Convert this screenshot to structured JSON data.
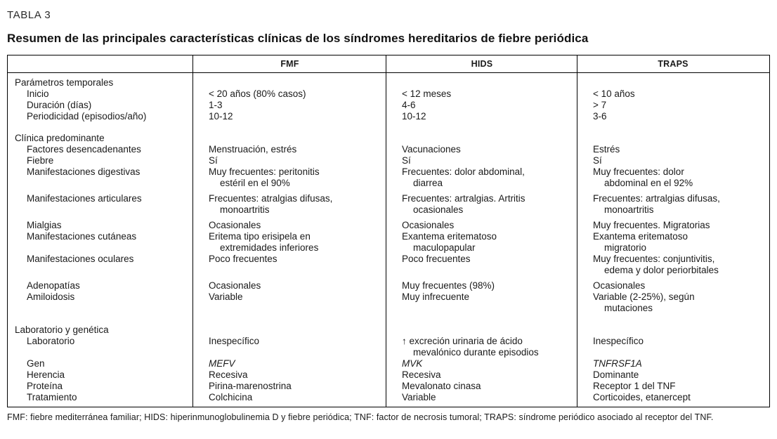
{
  "page": {
    "tag": "TABLA 3",
    "title": "Resumen de las principales características clínicas de los síndromes hereditarios de fiebre periódica",
    "footnote": "FMF: fiebre mediterránea familiar; HIDS: hiperinmunoglobulinemia D y fiebre periódica; TNF: factor de necrosis tumoral; TRAPS: síndrome periódico asociado al receptor del TNF."
  },
  "table": {
    "columns": [
      "",
      "FMF",
      "HIDS",
      "TRAPS"
    ],
    "sections": [
      {
        "heading": "Parámetros temporales",
        "rows": [
          {
            "label": "Inicio",
            "values": [
              [
                "< 20 años (80% casos)"
              ],
              [
                "< 12 meses"
              ],
              [
                "< 10 años"
              ]
            ]
          },
          {
            "label": "Duración (días)",
            "values": [
              [
                "1-3"
              ],
              [
                "4-6"
              ],
              [
                "> 7"
              ]
            ]
          },
          {
            "label": "Periodicidad (episodios/año)",
            "values": [
              [
                "10-12"
              ],
              [
                "10-12"
              ],
              [
                "3-6"
              ]
            ]
          }
        ]
      },
      {
        "heading": "Clínica predominante",
        "rows": [
          {
            "label": "Factores desencadenantes",
            "values": [
              [
                "Menstruación, estrés"
              ],
              [
                "Vacunaciones"
              ],
              [
                "Estrés"
              ]
            ]
          },
          {
            "label": "Fiebre",
            "values": [
              [
                "Sí"
              ],
              [
                "Sí"
              ],
              [
                "Sí"
              ]
            ]
          },
          {
            "label": "Manifestaciones digestivas",
            "values": [
              [
                "Muy frecuentes: peritonitis",
                "estéril en el 90%"
              ],
              [
                "Frecuentes: dolor abdominal,",
                "diarrea"
              ],
              [
                "Muy frecuentes: dolor",
                "abdominal en el 92%"
              ]
            ]
          },
          {
            "label": "Manifestaciones articulares",
            "gap": "sm",
            "values": [
              [
                "Frecuentes: atralgias difusas,",
                "monoartritis"
              ],
              [
                "Frecuentes: artralgias. Artritis",
                "ocasionales"
              ],
              [
                "Frecuentes: artralgias difusas,",
                "monoartritis"
              ]
            ]
          },
          {
            "label": "Mialgias",
            "gap": "sm",
            "values": [
              [
                "Ocasionales"
              ],
              [
                "Ocasionales"
              ],
              [
                "Muy frecuentes. Migratorias"
              ]
            ]
          },
          {
            "label": "Manifestaciones cutáneas",
            "values": [
              [
                "Eritema tipo erisipela en",
                "extremidades inferiores"
              ],
              [
                "Exantema eritematoso",
                "maculopapular"
              ],
              [
                "Exantema eritematoso",
                "migratorio"
              ]
            ]
          },
          {
            "label": "Manifestaciones oculares",
            "values": [
              [
                "Poco frecuentes"
              ],
              [
                "Poco frecuentes"
              ],
              [
                "Muy frecuentes: conjuntivitis,",
                "edema y dolor periorbitales"
              ]
            ]
          },
          {
            "label": "Adenopatías",
            "gap": "sm",
            "values": [
              [
                "Ocasionales"
              ],
              [
                "Muy frecuentes (98%)"
              ],
              [
                "Ocasionales"
              ]
            ]
          },
          {
            "label": "Amiloidosis",
            "values": [
              [
                "Variable"
              ],
              [
                "Muy infrecuente"
              ],
              [
                "Variable (2-25%), según",
                "mutaciones"
              ]
            ]
          }
        ]
      },
      {
        "heading": "Laboratorio y genética",
        "rows": [
          {
            "label": "Laboratorio",
            "values": [
              [
                "Inespecífico"
              ],
              [
                "↑ excreción urinaria de ácido",
                "mevalónico durante episodios"
              ],
              [
                "Inespecífico"
              ]
            ]
          },
          {
            "label": "Gen",
            "italic": true,
            "values": [
              [
                "MEFV"
              ],
              [
                "MVK"
              ],
              [
                "TNFRSF1A"
              ]
            ]
          },
          {
            "label": "Herencia",
            "values": [
              [
                "Recesiva"
              ],
              [
                "Recesiva"
              ],
              [
                "Dominante"
              ]
            ]
          },
          {
            "label": "Proteína",
            "values": [
              [
                "Pirina-marenostrina"
              ],
              [
                "Mevalonato cinasa"
              ],
              [
                "Receptor 1 del TNF"
              ]
            ]
          },
          {
            "label": "Tratamiento",
            "values": [
              [
                "Colchicina"
              ],
              [
                "Variable"
              ],
              [
                "Corticoides, etanercept"
              ]
            ]
          }
        ]
      }
    ]
  }
}
